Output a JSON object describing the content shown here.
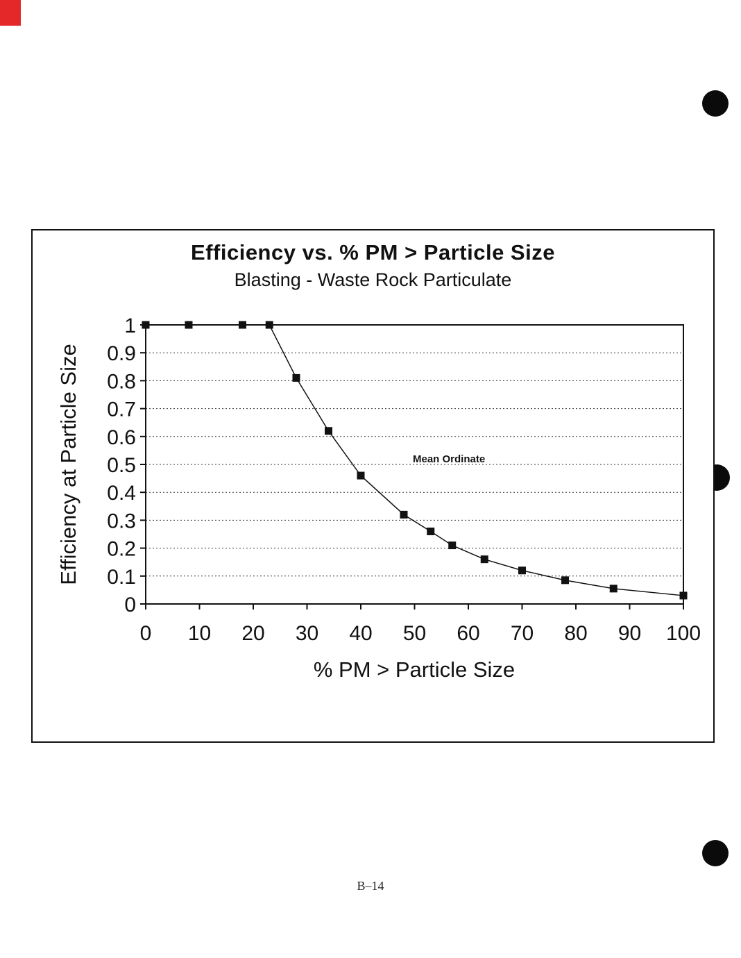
{
  "page": {
    "footer": "B–14"
  },
  "chart_data": {
    "type": "line",
    "title": "Efficiency vs. % PM > Particle Size",
    "subtitle": "Blasting - Waste Rock Particulate",
    "xlabel": "% PM > Particle Size",
    "ylabel": "Efficiency at Particle Size",
    "xlim": [
      0,
      100
    ],
    "ylim": [
      0,
      1
    ],
    "xticks": [
      0,
      10,
      20,
      30,
      40,
      50,
      60,
      70,
      80,
      90,
      100
    ],
    "xtick_labels": [
      "0",
      "10",
      "20",
      "30",
      "40",
      "50",
      "60",
      "70",
      "80",
      "90",
      "100"
    ],
    "yticks": [
      0,
      0.1,
      0.2,
      0.3,
      0.4,
      0.5,
      0.6,
      0.7,
      0.8,
      0.9,
      1
    ],
    "ytick_labels": [
      "0",
      "0.1",
      "0.2",
      "0.3",
      "0.4",
      "0.5",
      "0.6",
      "0.7",
      "0.8",
      "0.9",
      "1"
    ],
    "grid": "horizontal-dashed",
    "legend": "none",
    "annotation": {
      "text": "Mean Ordinate",
      "x": 50,
      "y": 0.535
    },
    "series": [
      {
        "name": "Mean Ordinate",
        "marker": "square",
        "color": "#111111",
        "points": [
          [
            0,
            1
          ],
          [
            8,
            1
          ],
          [
            18,
            1
          ],
          [
            23,
            1
          ],
          [
            28,
            0.81
          ],
          [
            34,
            0.62
          ],
          [
            40,
            0.46
          ],
          [
            48,
            0.32
          ],
          [
            53,
            0.26
          ],
          [
            57,
            0.21
          ],
          [
            63,
            0.16
          ],
          [
            70,
            0.12
          ],
          [
            78,
            0.085
          ],
          [
            87,
            0.055
          ],
          [
            100,
            0.03
          ]
        ]
      }
    ]
  }
}
